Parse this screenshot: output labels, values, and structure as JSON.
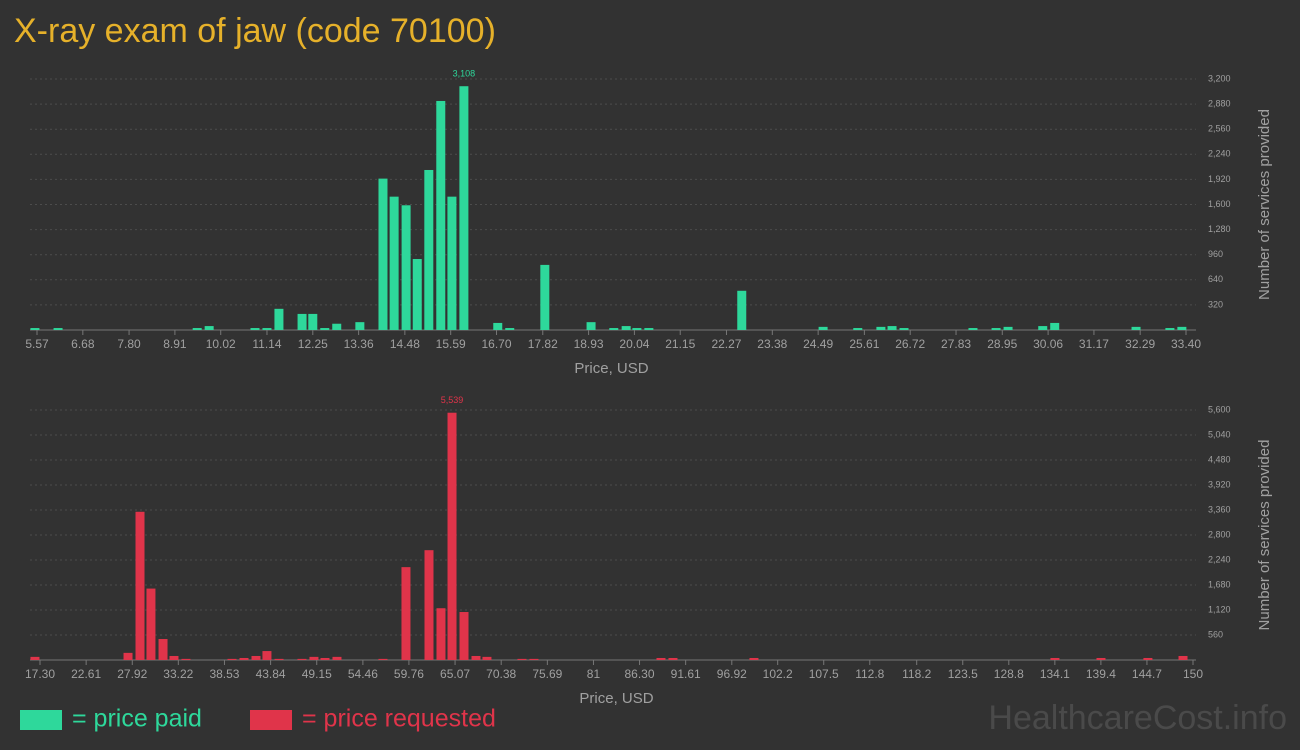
{
  "title": "X-ray exam of jaw (code 70100)",
  "watermark": "HealthcareCost.info",
  "chart_data": [
    {
      "type": "bar",
      "xlabel": "Price, USD",
      "ylabel": "Number of services provided",
      "xlim": [
        5.57,
        33.4
      ],
      "ylim": [
        0,
        3200
      ],
      "grid": true,
      "xticks": [
        5.57,
        6.68,
        {
          "value": 7.8,
          "label": "7.80"
        },
        8.91,
        10.02,
        11.14,
        12.25,
        13.36,
        14.48,
        15.59,
        {
          "value": 16.7,
          "label": "16.70"
        },
        17.82,
        18.93,
        20.04,
        21.15,
        22.27,
        23.38,
        24.49,
        25.61,
        26.72,
        27.83,
        28.95,
        30.06,
        31.17,
        32.29,
        {
          "value": 33.4,
          "label": "33.40"
        }
      ],
      "yticks": [
        320,
        640,
        960,
        {
          "value": 1280,
          "label": "1,280"
        },
        {
          "value": 1600,
          "label": "1,600"
        },
        {
          "value": 1920,
          "label": "1,920"
        },
        {
          "value": 2240,
          "label": "2,240"
        },
        {
          "value": 2560,
          "label": "2,560"
        },
        {
          "value": 2880,
          "label": "2,880"
        },
        {
          "value": 3200,
          "label": "3,200"
        }
      ],
      "x": [
        5.52,
        6.08,
        9.45,
        9.74,
        10.85,
        11.14,
        11.43,
        11.99,
        12.25,
        12.54,
        12.83,
        13.39,
        13.95,
        14.22,
        14.51,
        14.78,
        15.06,
        15.35,
        15.62,
        15.91,
        16.73,
        17.02,
        17.87,
        18.99,
        19.54,
        19.84,
        20.1,
        20.39,
        22.64,
        24.61,
        25.45,
        26.01,
        26.28,
        26.57,
        28.24,
        28.8,
        29.09,
        29.93,
        30.22,
        32.19,
        33.01,
        33.3
      ],
      "series": [
        {
          "name": "= price paid",
          "color": "#2ed89b",
          "values": [
            25,
            25,
            25,
            50,
            25,
            25,
            270,
            205,
            205,
            25,
            80,
            100,
            1930,
            1700,
            1590,
            905,
            2040,
            2920,
            1700,
            3108,
            90,
            25,
            830,
            100,
            25,
            50,
            25,
            25,
            500,
            40,
            25,
            40,
            50,
            25,
            25,
            25,
            40,
            50,
            90,
            40,
            25,
            40
          ],
          "value_labels": [
            null,
            null,
            null,
            null,
            null,
            null,
            null,
            null,
            null,
            null,
            null,
            null,
            null,
            null,
            null,
            null,
            null,
            null,
            null,
            "3,108",
            null,
            null,
            null,
            null,
            null,
            null,
            null,
            null,
            null,
            null,
            null,
            null,
            null,
            null,
            null,
            null,
            null,
            null,
            null,
            null,
            null,
            null
          ]
        }
      ]
    },
    {
      "type": "bar",
      "xlabel": "Price, USD",
      "ylabel": "Number of services provided",
      "xlim": [
        17.3,
        150
      ],
      "ylim": [
        0,
        5600
      ],
      "grid": true,
      "xticks": [
        {
          "value": 17.3,
          "label": "17.30"
        },
        22.61,
        27.92,
        33.22,
        38.53,
        43.84,
        49.15,
        54.46,
        59.76,
        65.07,
        70.38,
        75.69,
        81,
        {
          "value": 86.3,
          "label": "86.30"
        },
        91.61,
        96.92,
        102.2,
        107.5,
        112.8,
        118.2,
        123.5,
        128.8,
        134.1,
        139.4,
        144.7,
        150
      ],
      "yticks": [
        560,
        {
          "value": 1120,
          "label": "1,120"
        },
        {
          "value": 1680,
          "label": "1,680"
        },
        {
          "value": 2240,
          "label": "2,240"
        },
        {
          "value": 2800,
          "label": "2,800"
        },
        {
          "value": 3360,
          "label": "3,360"
        },
        {
          "value": 3920,
          "label": "3,920"
        },
        {
          "value": 4480,
          "label": "4,480"
        },
        {
          "value": 5040,
          "label": "5,040"
        },
        {
          "value": 5600,
          "label": "5,600"
        }
      ],
      "x": [
        16.72,
        27.43,
        28.81,
        30.07,
        31.46,
        32.72,
        34.1,
        39.4,
        40.78,
        42.16,
        43.42,
        44.81,
        47.45,
        48.83,
        50.1,
        51.48,
        56.77,
        59.42,
        62.07,
        63.45,
        64.72,
        66.1,
        67.48,
        68.74,
        72.77,
        74.15,
        88.77,
        90.15,
        99.47,
        134.11,
        139.41,
        144.81,
        148.85
      ],
      "series": [
        {
          "name": "= price requested",
          "color": "#e0344a",
          "values": [
            70,
            160,
            3320,
            1600,
            470,
            90,
            25,
            25,
            45,
            90,
            200,
            25,
            25,
            70,
            45,
            70,
            25,
            2080,
            2460,
            1160,
            5539,
            1075,
            90,
            70,
            25,
            25,
            45,
            45,
            45,
            45,
            45,
            45,
            90
          ],
          "value_labels": [
            null,
            null,
            null,
            null,
            null,
            null,
            null,
            null,
            null,
            null,
            null,
            null,
            null,
            null,
            null,
            null,
            null,
            null,
            null,
            null,
            "5,539",
            null,
            null,
            null,
            null,
            null,
            null,
            null,
            null,
            null,
            null,
            null,
            null
          ]
        }
      ]
    }
  ]
}
